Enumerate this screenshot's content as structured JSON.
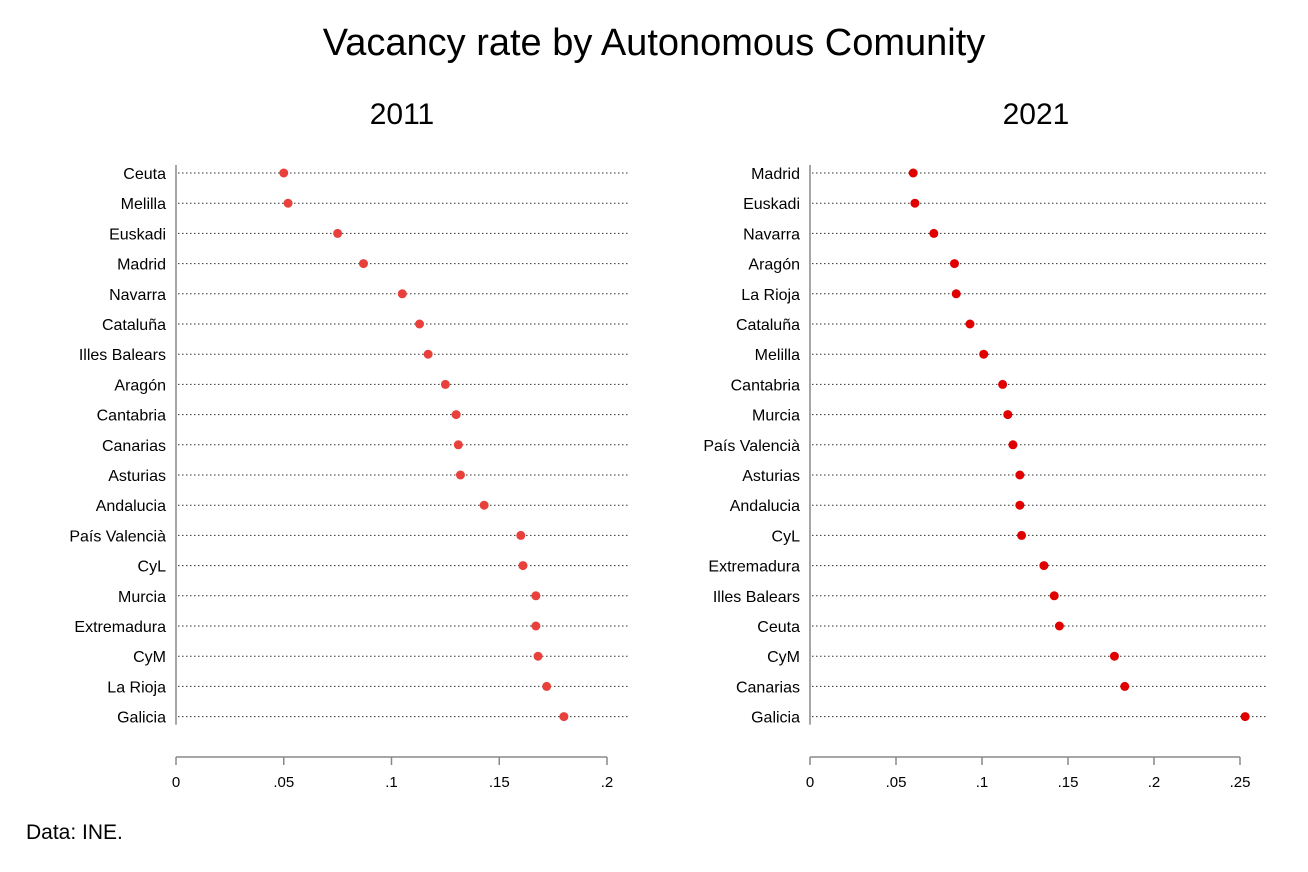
{
  "title": "Vacancy rate by Autonomous Comunity",
  "footnote": "Data: INE.",
  "colors": {
    "dot_2011": "#e8403a",
    "dot_2021": "#e00000",
    "axis": "#888888",
    "guide": "#333333"
  },
  "chart_data": [
    {
      "type": "scatter",
      "title": "2011",
      "xlim": [
        0,
        0.2
      ],
      "xticks": [
        {
          "value": 0,
          "label": "0"
        },
        {
          "value": 0.05,
          "label": ".05"
        },
        {
          "value": 0.1,
          "label": ".1"
        },
        {
          "value": 0.15,
          "label": ".15"
        },
        {
          "value": 0.2,
          "label": ".2"
        }
      ],
      "categories": [
        "Ceuta",
        "Melilla",
        "Euskadi",
        "Madrid",
        "Navarra",
        "Cataluña",
        "Illes Balears",
        "Aragón",
        "Cantabria",
        "Canarias",
        "Asturias",
        "Andalucia",
        "País Valencià",
        "CyL",
        "Murcia",
        "Extremadura",
        "CyM",
        "La Rioja",
        "Galicia"
      ],
      "values": [
        0.05,
        0.052,
        0.075,
        0.087,
        0.105,
        0.113,
        0.117,
        0.125,
        0.13,
        0.131,
        0.132,
        0.143,
        0.16,
        0.161,
        0.167,
        0.167,
        0.168,
        0.172,
        0.18
      ]
    },
    {
      "type": "scatter",
      "title": "2021",
      "xlim": [
        0,
        0.25
      ],
      "xticks": [
        {
          "value": 0,
          "label": "0"
        },
        {
          "value": 0.05,
          "label": ".05"
        },
        {
          "value": 0.1,
          "label": ".1"
        },
        {
          "value": 0.15,
          "label": ".15"
        },
        {
          "value": 0.2,
          "label": ".2"
        },
        {
          "value": 0.25,
          "label": ".25"
        }
      ],
      "categories": [
        "Madrid",
        "Euskadi",
        "Navarra",
        "Aragón",
        "La Rioja",
        "Cataluña",
        "Melilla",
        "Cantabria",
        "Murcia",
        "País Valencià",
        "Asturias",
        "Andalucia",
        "CyL",
        "Extremadura",
        "Illes Balears",
        "Ceuta",
        "CyM",
        "Canarias",
        "Galicia"
      ],
      "values": [
        0.06,
        0.061,
        0.072,
        0.084,
        0.085,
        0.093,
        0.101,
        0.112,
        0.115,
        0.118,
        0.122,
        0.122,
        0.123,
        0.136,
        0.142,
        0.145,
        0.177,
        0.183,
        0.253
      ]
    }
  ]
}
